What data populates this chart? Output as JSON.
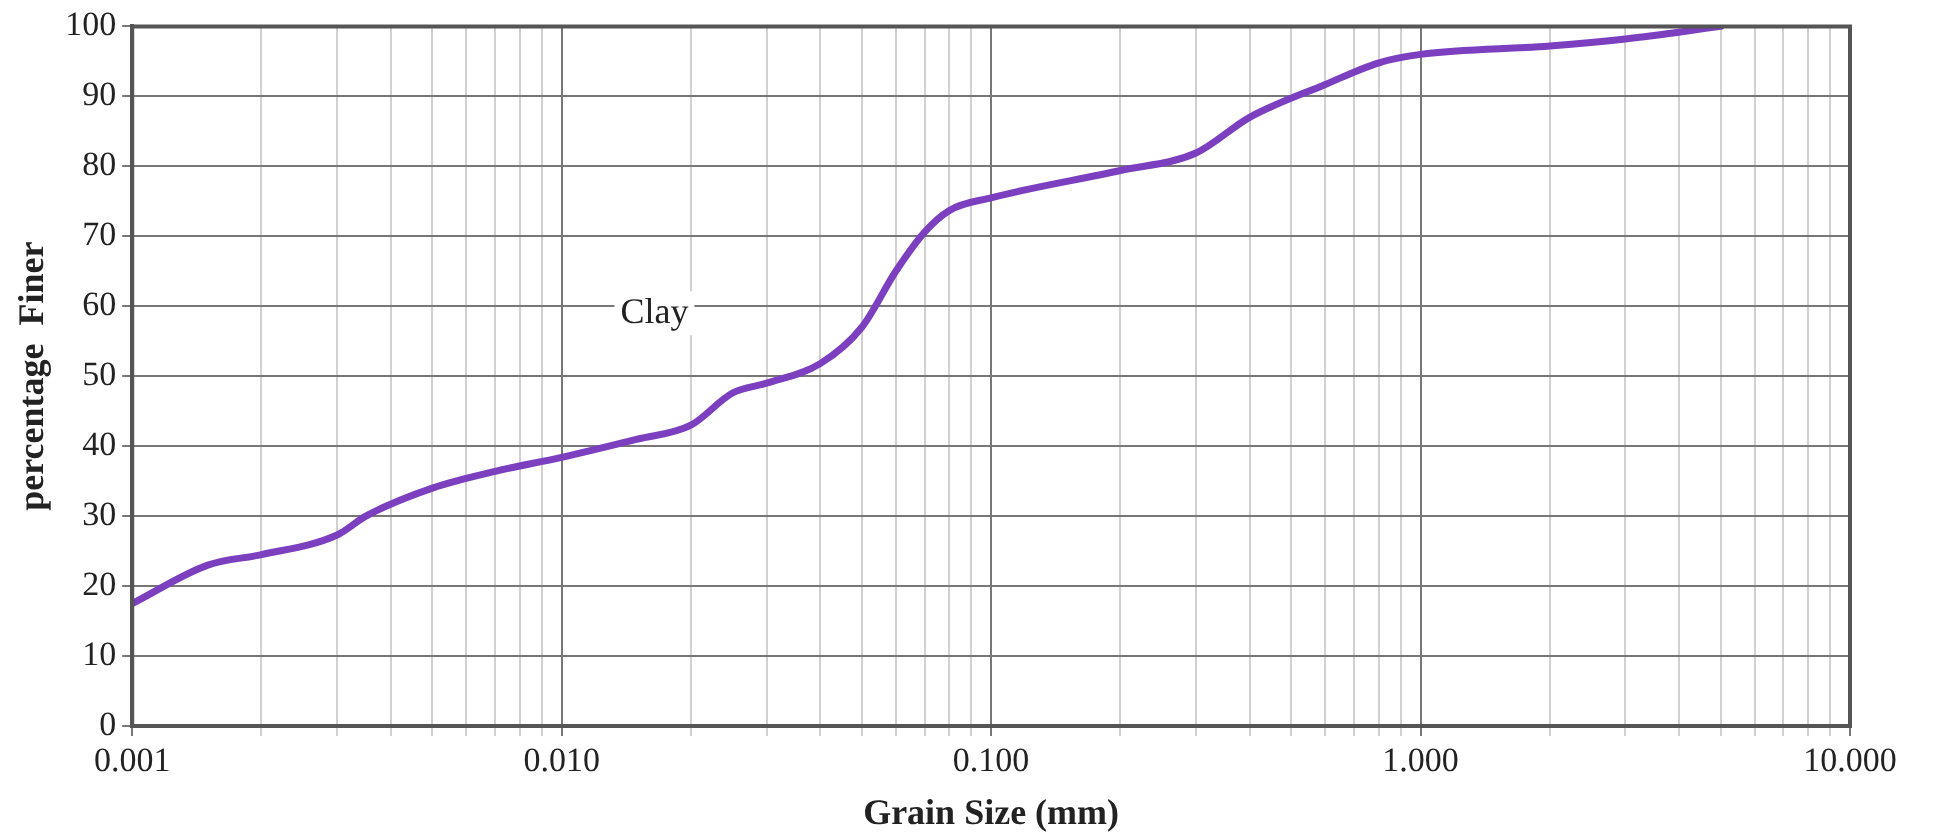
{
  "chart_data": {
    "type": "line",
    "xlabel": "Grain Size (mm)",
    "ylabel": "percentage  Finer",
    "log": "x",
    "grid": true,
    "marker": "none",
    "line_style": "solid",
    "legend": false,
    "annotations": [
      "Clay"
    ],
    "xlim": [
      0.001,
      10
    ],
    "ylim": [
      0,
      100
    ],
    "xticks": [
      {
        "value": 0.001,
        "label": "0.001"
      },
      {
        "value": 0.002,
        "label": null
      },
      {
        "value": 0.003,
        "label": null
      },
      {
        "value": 0.004,
        "label": null
      },
      {
        "value": 0.005,
        "label": null
      },
      {
        "value": 0.006,
        "label": null
      },
      {
        "value": 0.007,
        "label": null
      },
      {
        "value": 0.008,
        "label": null
      },
      {
        "value": 0.009,
        "label": null
      },
      {
        "value": 0.01,
        "label": "0.010"
      },
      {
        "value": 0.02,
        "label": null
      },
      {
        "value": 0.03,
        "label": null
      },
      {
        "value": 0.04,
        "label": null
      },
      {
        "value": 0.05,
        "label": null
      },
      {
        "value": 0.06,
        "label": null
      },
      {
        "value": 0.07,
        "label": null
      },
      {
        "value": 0.08,
        "label": null
      },
      {
        "value": 0.09,
        "label": null
      },
      {
        "value": 0.1,
        "label": "0.100"
      },
      {
        "value": 0.2,
        "label": null
      },
      {
        "value": 0.3,
        "label": null
      },
      {
        "value": 0.4,
        "label": null
      },
      {
        "value": 0.5,
        "label": null
      },
      {
        "value": 0.6,
        "label": null
      },
      {
        "value": 0.7,
        "label": null
      },
      {
        "value": 0.8,
        "label": null
      },
      {
        "value": 0.9,
        "label": null
      },
      {
        "value": 1,
        "label": "1.000"
      },
      {
        "value": 2,
        "label": null
      },
      {
        "value": 3,
        "label": null
      },
      {
        "value": 4,
        "label": null
      },
      {
        "value": 5,
        "label": null
      },
      {
        "value": 6,
        "label": null
      },
      {
        "value": 7,
        "label": null
      },
      {
        "value": 8,
        "label": null
      },
      {
        "value": 9,
        "label": null
      },
      {
        "value": 10,
        "label": "10.000"
      }
    ],
    "yticks": [
      0,
      10,
      20,
      30,
      40,
      50,
      60,
      70,
      80,
      90,
      100
    ],
    "series": [
      {
        "color": "#7b3fbf",
        "x": [
          0.001,
          0.0015,
          0.002,
          0.003,
          0.0035,
          0.005,
          0.007,
          0.01,
          0.015,
          0.02,
          0.025,
          0.03,
          0.04,
          0.05,
          0.06,
          0.07,
          0.08,
          0.1,
          0.2,
          0.3,
          0.4,
          0.6,
          0.8,
          1,
          2,
          3,
          5
        ],
        "values": [
          17.5,
          23,
          24.5,
          27.3,
          30,
          34,
          36.4,
          38.4,
          41,
          43,
          47.6,
          49,
          51.8,
          57,
          65,
          70.6,
          73.7,
          75.5,
          79.4,
          81.9,
          87,
          91.7,
          94.8,
          96,
          97.2,
          98.2,
          100
        ]
      }
    ]
  }
}
